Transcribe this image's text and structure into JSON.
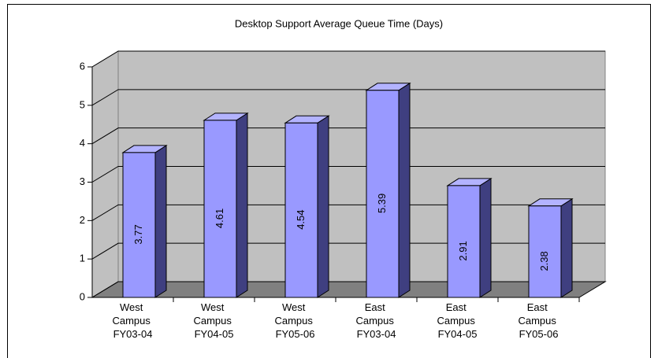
{
  "chart_data": {
    "type": "bar3d",
    "title": "Desktop Support Average Queue Time (Days)",
    "categories": [
      "West Campus FY03-04",
      "West Campus FY04-05",
      "West Campus FY05-06",
      "East Campus FY03-04",
      "East Campus FY04-05",
      "East Campus FY05-06"
    ],
    "values": [
      3.77,
      4.61,
      4.54,
      5.39,
      2.91,
      2.38
    ],
    "color": "#9999ff",
    "ylim": [
      0,
      6
    ],
    "yticks": [
      0,
      1,
      2,
      3,
      4,
      5,
      6
    ],
    "grid": true
  }
}
